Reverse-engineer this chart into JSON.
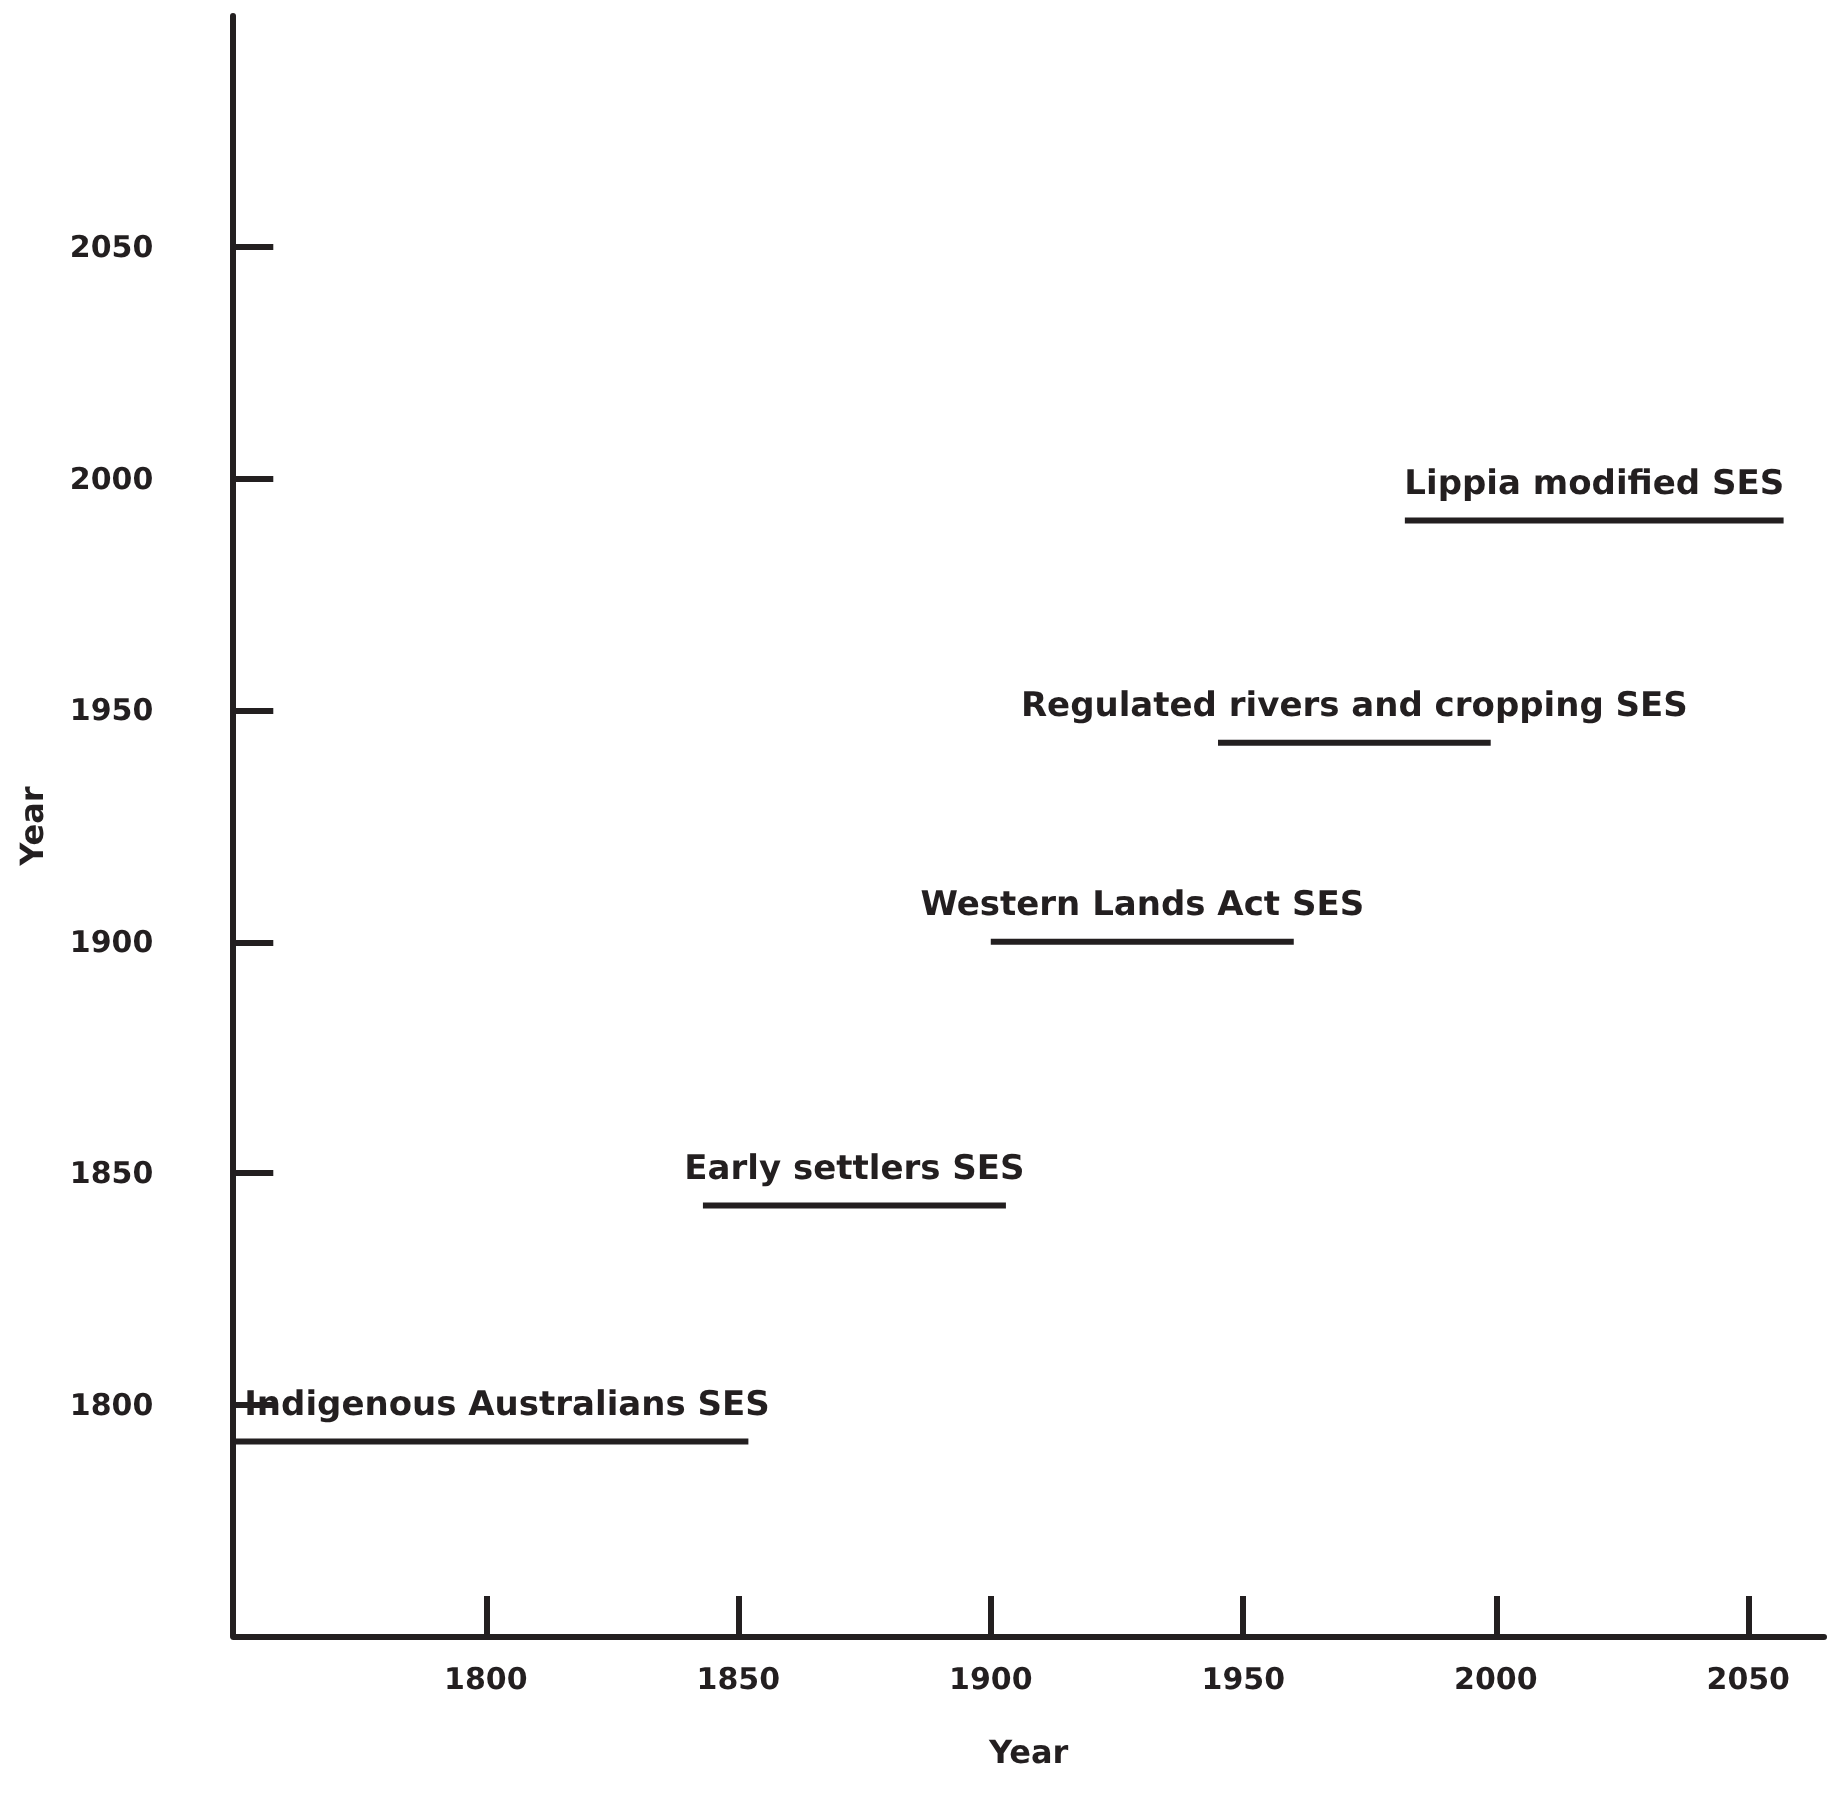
{
  "chart_data": {
    "type": "line",
    "xlabel": "Year",
    "ylabel": "Year",
    "xlim": [
      1750,
      2065
    ],
    "ylim": [
      1750,
      2100
    ],
    "xticks": [
      1800,
      1850,
      1900,
      1950,
      2000,
      2050
    ],
    "yticks": [
      1800,
      1850,
      1900,
      1950,
      2000,
      2050
    ],
    "grid": false,
    "legend": false,
    "marker": "none",
    "line_style": "solid",
    "series": [
      {
        "name": "Indigenous Australians SES",
        "color": "#231f20",
        "x": [
          1750,
          1852
        ],
        "values": [
          1792,
          1792
        ]
      },
      {
        "name": "Early settlers SES",
        "color": "#231f20",
        "x": [
          1843,
          1903
        ],
        "values": [
          1843,
          1843
        ]
      },
      {
        "name": "Western Lands Act SES",
        "color": "#231f20",
        "x": [
          1900,
          1960
        ],
        "values": [
          1900,
          1900
        ]
      },
      {
        "name": "Regulated rivers and cropping SES",
        "color": "#231f20",
        "x": [
          1945,
          1999
        ],
        "values": [
          1943,
          1943
        ]
      },
      {
        "name": "Lippia modified SES",
        "color": "#231f20",
        "x": [
          1982,
          2057
        ],
        "values": [
          1991,
          1991
        ]
      }
    ]
  }
}
